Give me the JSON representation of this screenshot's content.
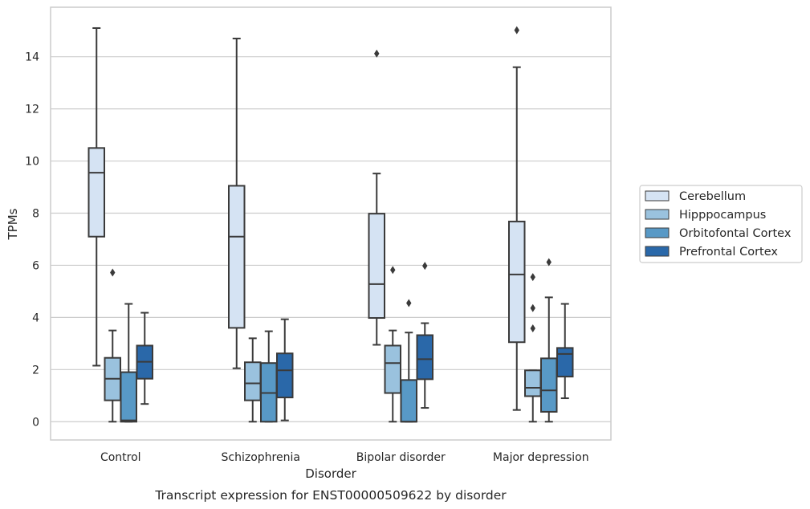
{
  "chart_data": {
    "type": "box",
    "xlabel": "Disorder",
    "ylabel": "TPMs",
    "caption": "Transcript expression for ENST00000509622 by disorder",
    "categories": [
      "Control",
      "Schizophrenia",
      "Bipolar disorder",
      "Major depression"
    ],
    "ylim": [
      -0.7,
      15.9
    ],
    "yticks": [
      0,
      2,
      4,
      6,
      8,
      10,
      12,
      14
    ],
    "grid": true,
    "legend_position": "right",
    "series": [
      {
        "name": "Cerebellum",
        "color": "#d5e3f3",
        "boxes": [
          {
            "whislo": 2.15,
            "q1": 7.1,
            "med": 9.55,
            "q3": 10.5,
            "whishi": 15.1,
            "fliers": []
          },
          {
            "whislo": 2.05,
            "q1": 3.6,
            "med": 7.1,
            "q3": 9.05,
            "whishi": 14.7,
            "fliers": []
          },
          {
            "whislo": 2.95,
            "q1": 3.98,
            "med": 5.28,
            "q3": 7.98,
            "whishi": 9.52,
            "fliers": [
              14.12
            ]
          },
          {
            "whislo": 0.45,
            "q1": 3.05,
            "med": 5.65,
            "q3": 7.68,
            "whishi": 13.6,
            "fliers": [
              15.02
            ]
          }
        ]
      },
      {
        "name": "Hipppocampus",
        "color": "#9ac2de",
        "boxes": [
          {
            "whislo": 0.0,
            "q1": 0.82,
            "med": 1.65,
            "q3": 2.45,
            "whishi": 3.5,
            "fliers": [
              5.72
            ]
          },
          {
            "whislo": 0.0,
            "q1": 0.82,
            "med": 1.47,
            "q3": 2.28,
            "whishi": 3.2,
            "fliers": []
          },
          {
            "whislo": 0.0,
            "q1": 1.1,
            "med": 2.25,
            "q3": 2.92,
            "whishi": 3.5,
            "fliers": [
              5.82
            ]
          },
          {
            "whislo": 0.0,
            "q1": 0.98,
            "med": 1.3,
            "q3": 1.97,
            "whishi": 1.97,
            "fliers": [
              5.55,
              4.36,
              3.58
            ]
          }
        ]
      },
      {
        "name": "Orbitofontal Cortex",
        "color": "#5899c6",
        "boxes": [
          {
            "whislo": 0.0,
            "q1": 0.0,
            "med": 0.05,
            "q3": 1.9,
            "whishi": 4.52,
            "fliers": []
          },
          {
            "whislo": 0.0,
            "q1": 0.0,
            "med": 1.1,
            "q3": 2.25,
            "whishi": 3.47,
            "fliers": []
          },
          {
            "whislo": 0.0,
            "q1": 0.0,
            "med": 0.0,
            "q3": 1.6,
            "whishi": 3.42,
            "fliers": [
              4.55
            ]
          },
          {
            "whislo": 0.0,
            "q1": 0.38,
            "med": 1.2,
            "q3": 2.43,
            "whishi": 4.77,
            "fliers": [
              6.12
            ]
          }
        ]
      },
      {
        "name": "Prefrontal Cortex",
        "color": "#2a68a9",
        "boxes": [
          {
            "whislo": 0.68,
            "q1": 1.65,
            "med": 2.3,
            "q3": 2.92,
            "whishi": 4.18,
            "fliers": []
          },
          {
            "whislo": 0.05,
            "q1": 0.93,
            "med": 1.97,
            "q3": 2.62,
            "whishi": 3.93,
            "fliers": []
          },
          {
            "whislo": 0.53,
            "q1": 1.63,
            "med": 2.4,
            "q3": 3.32,
            "whishi": 3.78,
            "fliers": [
              5.98
            ]
          },
          {
            "whislo": 0.9,
            "q1": 1.73,
            "med": 2.6,
            "q3": 2.83,
            "whishi": 4.52,
            "fliers": []
          }
        ]
      }
    ]
  }
}
